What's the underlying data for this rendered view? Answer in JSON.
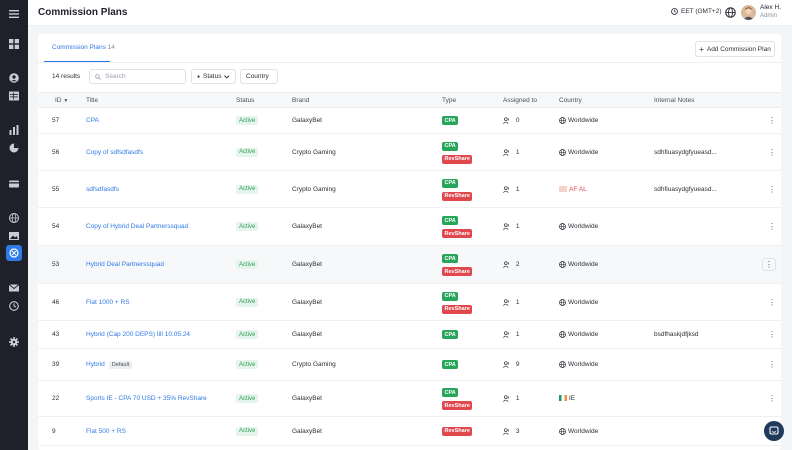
{
  "header": {
    "title": "Commission Plans",
    "timezone": "EET (GMT+2)",
    "user_name": "Alex H.",
    "user_role": "Admin"
  },
  "tabs": [
    {
      "label": "Commission Plans",
      "count": "14"
    }
  ],
  "toolbar": {
    "add_label": "Add Commission Plan",
    "results": "14 results",
    "search_placeholder": "Search",
    "status_filter": "Status",
    "country_filter": "Country"
  },
  "columns": [
    "ID",
    "Title",
    "Status",
    "Brand",
    "Type",
    "Assigned to",
    "Country",
    "Internal Notes"
  ],
  "rows": [
    {
      "id": "57",
      "title": "CPA",
      "default": "",
      "status": "Active",
      "brand": "GalaxyBet",
      "types": [
        "CPA"
      ],
      "assigned": "0",
      "country": "Worldwide",
      "notes": ""
    },
    {
      "id": "56",
      "title": "Copy of sdfsdfasdfs",
      "default": "",
      "status": "Active",
      "brand": "Crypto Gaming",
      "types": [
        "CPA",
        "RevShare"
      ],
      "assigned": "1",
      "country": "Worldwide",
      "notes": "sdhfiuasydgfyueasd..."
    },
    {
      "id": "55",
      "title": "sdfsdfasdfs",
      "default": "",
      "status": "Active",
      "brand": "Crypto Gaming",
      "types": [
        "CPA",
        "RevShare"
      ],
      "assigned": "1",
      "country": "AF  AL",
      "notes": "sdhfiuasydgfyueasd..."
    },
    {
      "id": "54",
      "title": "Copy of Hybrid Deal Partnerssquad",
      "default": "",
      "status": "Active",
      "brand": "GalaxyBet",
      "types": [
        "CPA",
        "RevShare"
      ],
      "assigned": "1",
      "country": "Worldwide",
      "notes": ""
    },
    {
      "id": "53",
      "title": "Hybrid Deal Partnerssquad",
      "default": "",
      "status": "Active",
      "brand": "GalaxyBet",
      "types": [
        "CPA",
        "RevShare"
      ],
      "assigned": "2",
      "country": "Worldwide",
      "notes": ""
    },
    {
      "id": "46",
      "title": "Flat 1000 + RS",
      "default": "",
      "status": "Active",
      "brand": "GalaxyBet",
      "types": [
        "CPA",
        "RevShare"
      ],
      "assigned": "1",
      "country": "Worldwide",
      "notes": ""
    },
    {
      "id": "43",
      "title": "Hybrid (Cap 200 DEPS) till 10.05.24",
      "default": "",
      "status": "Active",
      "brand": "GalaxyBet",
      "types": [
        "CPA"
      ],
      "assigned": "1",
      "country": "Worldwide",
      "notes": "bsdfhaskjdfjksd"
    },
    {
      "id": "39",
      "title": "Hybrid",
      "default": "Default",
      "status": "Active",
      "brand": "Crypto Gaming",
      "types": [
        "CPA"
      ],
      "assigned": "9",
      "country": "Worldwide",
      "notes": ""
    },
    {
      "id": "22",
      "title": "Sports IE - CPA 70 USD + 35% RevShare",
      "default": "",
      "status": "Active",
      "brand": "GalaxyBet",
      "types": [
        "CPA",
        "RevShare"
      ],
      "assigned": "1",
      "country": "IE",
      "notes": ""
    },
    {
      "id": "9",
      "title": "Flat 500 + RS",
      "default": "",
      "status": "Active",
      "brand": "GalaxyBet",
      "types": [
        "RevShare"
      ],
      "assigned": "3",
      "country": "Worldwide",
      "notes": ""
    }
  ],
  "colors": {
    "accent": "#2f7ae5",
    "cpa": "#27a55a",
    "revshare": "#e0484e",
    "sidebar": "#1e2129"
  }
}
